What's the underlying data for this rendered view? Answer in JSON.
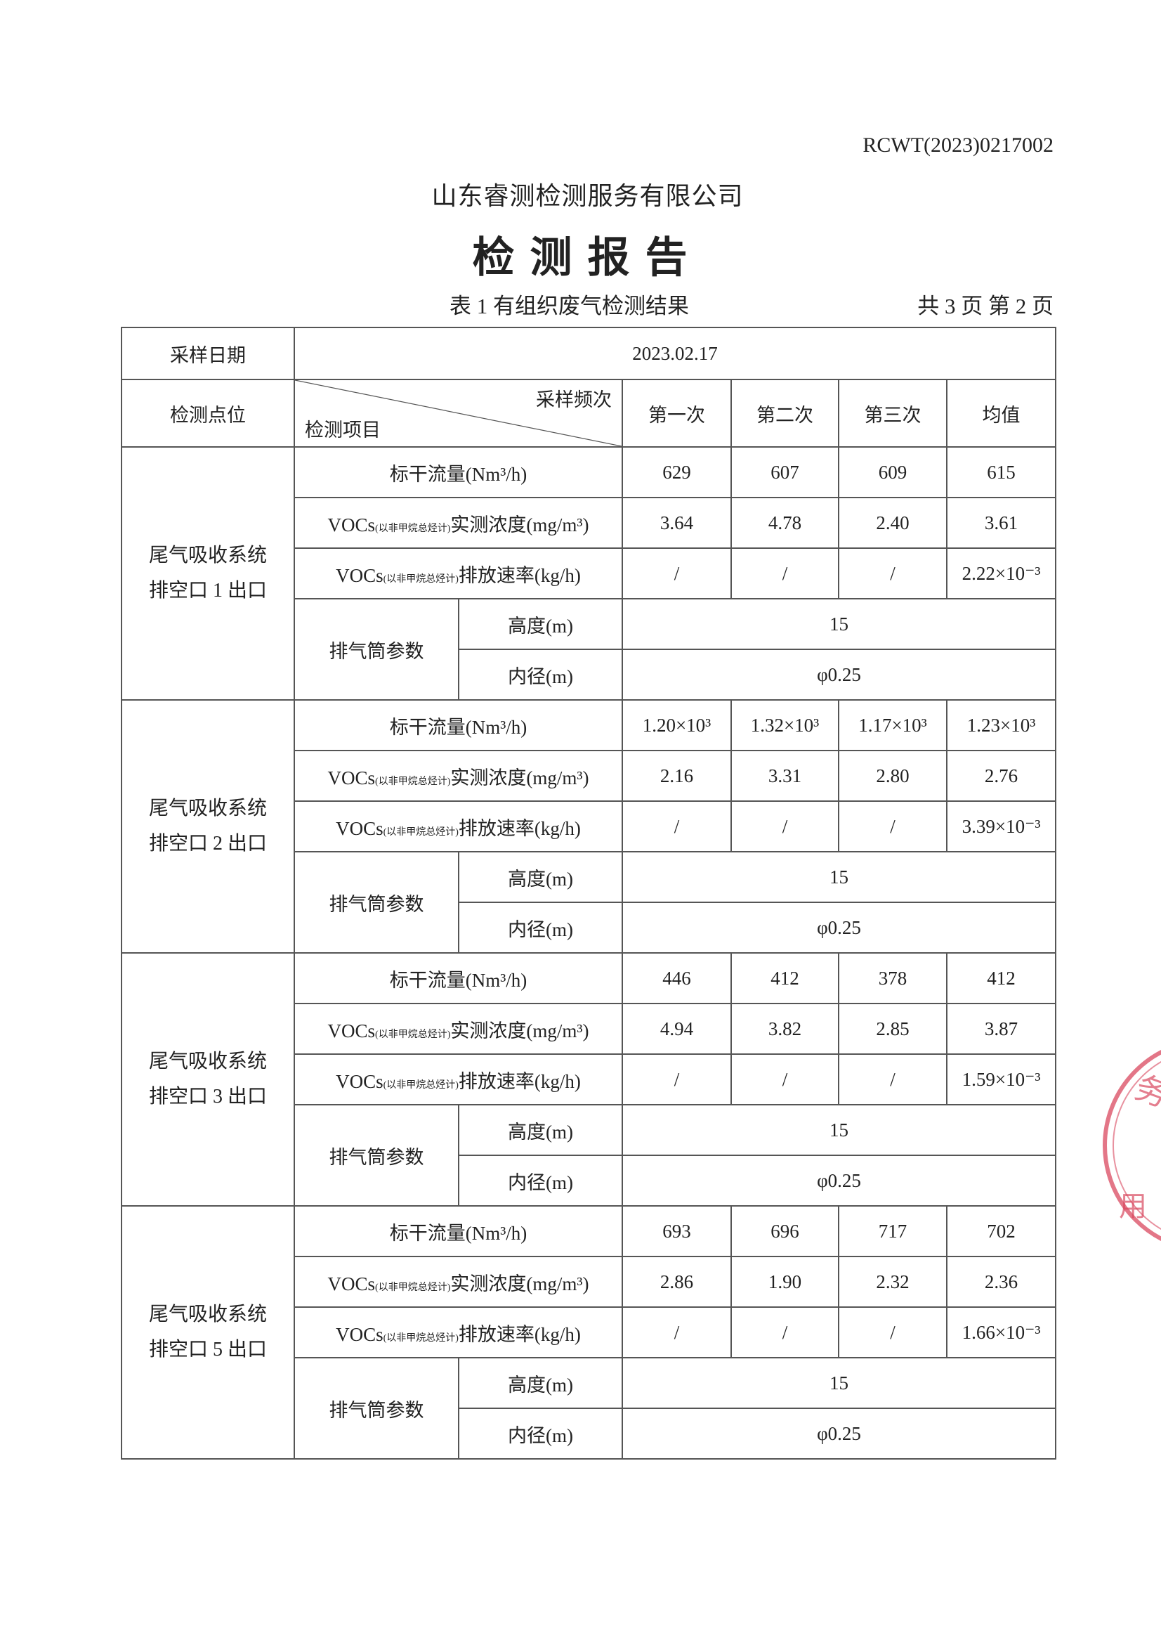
{
  "report_code": "RCWT(2023)0217002",
  "company": "山东睿测检测服务有限公司",
  "title": "检测报告",
  "table_caption": "表 1   有组织废气检测结果",
  "pages": "共 3 页   第 2 页",
  "stamp_color": "#d9485f",
  "header": {
    "date_label": "采样日期",
    "date_value": "2023.02.17",
    "point_label": "检测点位",
    "freq_label": "采样频次",
    "item_label": "检测项目",
    "cols": [
      "第一次",
      "第二次",
      "第三次",
      "均值"
    ]
  },
  "labels": {
    "flow": "标干流量(Nm³/h)",
    "voc": "VOCs",
    "voc_sub": "(以非甲烷总烃计)",
    "conc": "实测浓度(mg/m³)",
    "rate": "排放速率(kg/h)",
    "stack": "排气筒参数",
    "height": "高度(m)",
    "diameter": "内径(m)"
  },
  "groups": [
    {
      "line1": "尾气吸收系统",
      "line2": "排空口 1 出口",
      "flow": [
        "629",
        "607",
        "609",
        "615"
      ],
      "conc": [
        "3.64",
        "4.78",
        "2.40",
        "3.61"
      ],
      "rate": [
        "/",
        "/",
        "/",
        "2.22×10⁻³"
      ],
      "height": "15",
      "diameter": "φ0.25"
    },
    {
      "line1": "尾气吸收系统",
      "line2": "排空口 2 出口",
      "flow": [
        "1.20×10³",
        "1.32×10³",
        "1.17×10³",
        "1.23×10³"
      ],
      "conc": [
        "2.16",
        "3.31",
        "2.80",
        "2.76"
      ],
      "rate": [
        "/",
        "/",
        "/",
        "3.39×10⁻³"
      ],
      "height": "15",
      "diameter": "φ0.25"
    },
    {
      "line1": "尾气吸收系统",
      "line2": "排空口 3 出口",
      "flow": [
        "446",
        "412",
        "378",
        "412"
      ],
      "conc": [
        "4.94",
        "3.82",
        "2.85",
        "3.87"
      ],
      "rate": [
        "/",
        "/",
        "/",
        "1.59×10⁻³"
      ],
      "height": "15",
      "diameter": "φ0.25"
    },
    {
      "line1": "尾气吸收系统",
      "line2": "排空口 5 出口",
      "flow": [
        "693",
        "696",
        "717",
        "702"
      ],
      "conc": [
        "2.86",
        "1.90",
        "2.32",
        "2.36"
      ],
      "rate": [
        "/",
        "/",
        "/",
        "1.66×10⁻³"
      ],
      "height": "15",
      "diameter": "φ0.25"
    }
  ]
}
